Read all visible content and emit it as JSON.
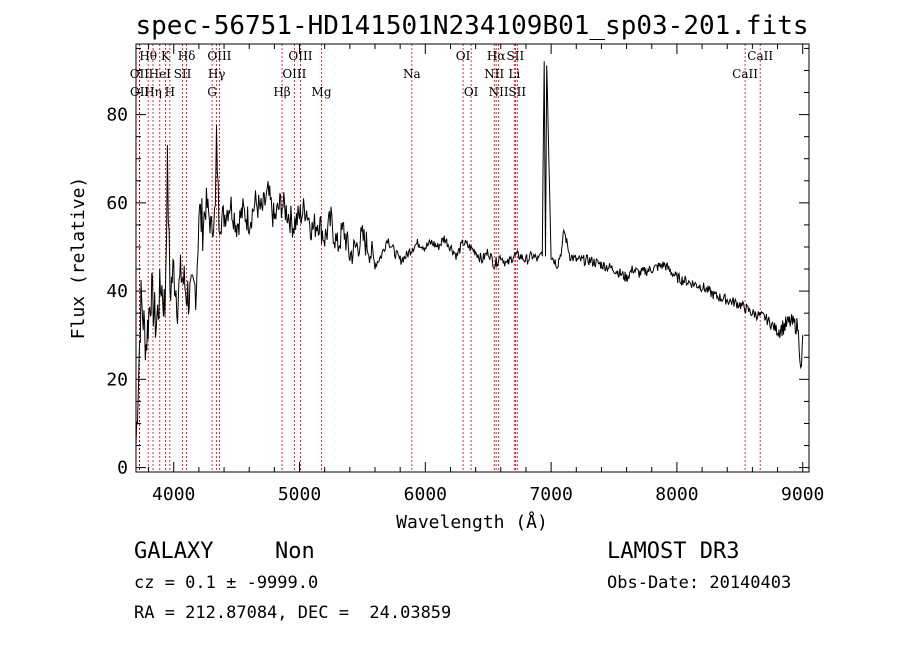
{
  "chart_data": {
    "type": "line",
    "title": "spec-56751-HD141501N234109B01_sp03-201.fits",
    "xlabel": "Wavelength (Å)",
    "ylabel": "Flux (relative)",
    "xlim": [
      3700,
      9050
    ],
    "ylim": [
      -1,
      96
    ],
    "xticks": [
      4000,
      5000,
      6000,
      7000,
      8000,
      9000
    ],
    "yticks": [
      0,
      20,
      40,
      60,
      80
    ],
    "series": [
      {
        "name": "spectrum",
        "x": [
          3700,
          3740,
          3780,
          3820,
          3860,
          3900,
          3930,
          3950,
          3970,
          4000,
          4030,
          4060,
          4100,
          4140,
          4180,
          4200,
          4230,
          4260,
          4300,
          4330,
          4340,
          4360,
          4400,
          4450,
          4500,
          4550,
          4600,
          4650,
          4700,
          4750,
          4800,
          4850,
          4900,
          4950,
          5000,
          5050,
          5100,
          5150,
          5200,
          5250,
          5300,
          5350,
          5400,
          5450,
          5500,
          5550,
          5600,
          5650,
          5700,
          5750,
          5800,
          5850,
          5900,
          5950,
          6000,
          6050,
          6100,
          6150,
          6200,
          6250,
          6300,
          6350,
          6400,
          6450,
          6500,
          6550,
          6600,
          6650,
          6700,
          6750,
          6800,
          6850,
          6900,
          6930,
          6945,
          6955,
          6965,
          7000,
          7050,
          7090,
          7100,
          7150,
          7200,
          7300,
          7400,
          7500,
          7600,
          7650,
          7700,
          7800,
          7900,
          8000,
          8100,
          8200,
          8300,
          8400,
          8500,
          8600,
          8700,
          8800,
          8900,
          8960,
          8990,
          9000
        ],
        "y": [
          5,
          38,
          28,
          40,
          32,
          42,
          36,
          68,
          40,
          45,
          38,
          44,
          40,
          38,
          42,
          58,
          55,
          60,
          54,
          58,
          75,
          56,
          57,
          60,
          55,
          58,
          56,
          60,
          58,
          62,
          56,
          60,
          58,
          55,
          57,
          59,
          54,
          56,
          52,
          56,
          50,
          54,
          48,
          50,
          52,
          50,
          46,
          48,
          52,
          49,
          47,
          48,
          50,
          51,
          50,
          51,
          50,
          52,
          50,
          48,
          51,
          50,
          49,
          47,
          49,
          46,
          48,
          46,
          48,
          48,
          47,
          48,
          47,
          49,
          93,
          48,
          92,
          48,
          46,
          50,
          54,
          48,
          47,
          47,
          46,
          45,
          43,
          45,
          44,
          45,
          46,
          43,
          42,
          41,
          39,
          38,
          37,
          35,
          34,
          31,
          33,
          32,
          22,
          30
        ]
      }
    ],
    "spectral_lines": [
      {
        "label": "Hθ",
        "x": 3797,
        "row": 1
      },
      {
        "label": "OII",
        "x": 3727,
        "row": 2
      },
      {
        "label": "OII",
        "x": 3729,
        "row": 3
      },
      {
        "label": "K",
        "x": 3934,
        "row": 1
      },
      {
        "label": "HeI",
        "x": 3889,
        "row": 2
      },
      {
        "label": "Hη",
        "x": 3835,
        "row": 3
      },
      {
        "label": "H",
        "x": 3969,
        "row": 3
      },
      {
        "label": "Hδ",
        "x": 4102,
        "row": 1
      },
      {
        "label": "SII",
        "x": 4070,
        "row": 2
      },
      {
        "label": "OIII",
        "x": 4363,
        "row": 1
      },
      {
        "label": "Hγ",
        "x": 4341,
        "row": 2
      },
      {
        "label": "G",
        "x": 4305,
        "row": 3
      },
      {
        "label": "OIII",
        "x": 5007,
        "row": 1
      },
      {
        "label": "OIII",
        "x": 4959,
        "row": 2
      },
      {
        "label": "Hβ",
        "x": 4861,
        "row": 3
      },
      {
        "label": "Mg",
        "x": 5175,
        "row": 3
      },
      {
        "label": "Na",
        "x": 5893,
        "row": 2
      },
      {
        "label": "OI",
        "x": 6300,
        "row": 1
      },
      {
        "label": "OI",
        "x": 6364,
        "row": 3
      },
      {
        "label": "Hα",
        "x": 6563,
        "row": 1
      },
      {
        "label": "SII",
        "x": 6716,
        "row": 1
      },
      {
        "label": "NII",
        "x": 6548,
        "row": 2
      },
      {
        "label": "Li",
        "x": 6707,
        "row": 2
      },
      {
        "label": "NII",
        "x": 6583,
        "row": 3
      },
      {
        "label": "SII",
        "x": 6731,
        "row": 3
      },
      {
        "label": "CaII",
        "x": 8662,
        "row": 1
      },
      {
        "label": "CaII",
        "x": 8542,
        "row": 2
      }
    ],
    "line_marker_color": "#cc0000"
  },
  "info": {
    "object_class": "GALAXY",
    "subclass": "Non",
    "survey": "LAMOST DR3",
    "cz": "cz = 0.1 ± -9999.0",
    "obs_date": "Obs-Date: 20140403",
    "coords": "RA = 212.87084, DEC =  24.03859"
  }
}
